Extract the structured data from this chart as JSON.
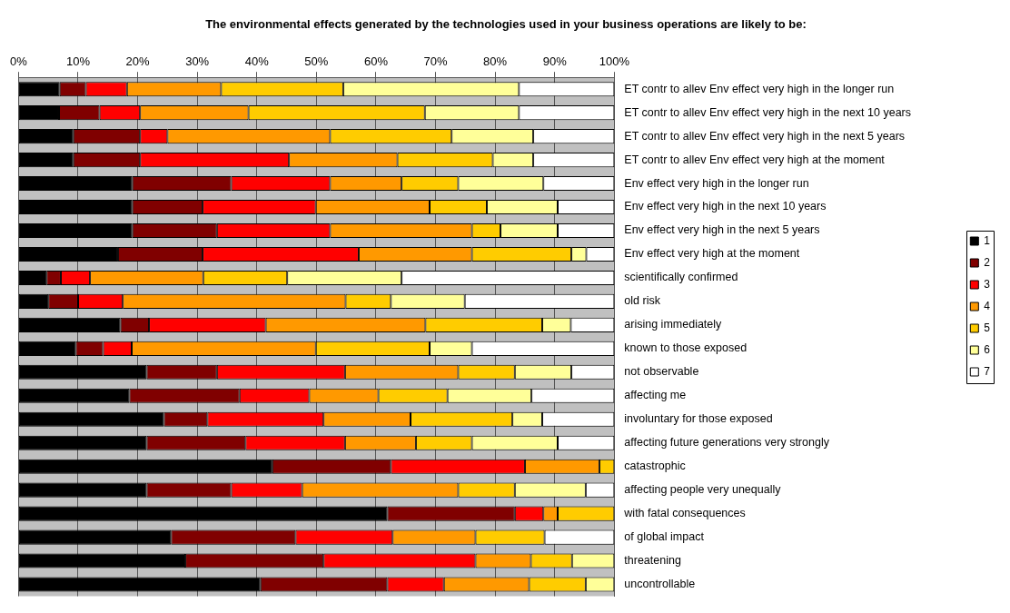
{
  "chart_data": {
    "type": "bar",
    "orientation": "horizontal",
    "stacked": true,
    "title": "The environmental effects generated by the technologies used in your business operations are likely to be:",
    "categories": [
      "ET contr to allev Env effect very high in the longer run",
      "ET contr to allev Env effect very high in the next 10 years",
      "ET contr to allev Env effect very high in the next 5 years",
      "ET contr to allev Env effect very high at the moment",
      "Env effect very high in the longer run",
      "Env effect very high in the next 10 years",
      "Env effect very high in the next 5 years",
      "Env effect very high at the moment",
      "scientifically confirmed",
      "old risk",
      "arising immediately",
      "known to those exposed",
      "not observable",
      "affecting me",
      "involuntary for those exposed",
      "affecting future generations very strongly",
      "catastrophic",
      "affecting people very unequally",
      "with fatal consequences",
      "of global impact",
      "threatening",
      "uncontrollable"
    ],
    "series": [
      {
        "name": "1",
        "color": "#000000",
        "values": [
          6.9,
          6.8,
          9.2,
          9.2,
          19.1,
          19.1,
          19.1,
          16.7,
          4.7,
          5.0,
          17.1,
          9.6,
          21.5,
          18.6,
          24.4,
          21.5,
          42.6,
          21.5,
          61.9,
          25.6,
          28.0,
          40.6
        ]
      },
      {
        "name": "2",
        "color": "#800000",
        "values": [
          4.4,
          6.8,
          11.2,
          11.2,
          16.6,
          11.8,
          14.2,
          14.2,
          2.4,
          5.0,
          4.8,
          4.6,
          11.8,
          18.5,
          7.3,
          16.6,
          19.9,
          14.2,
          21.4,
          20.9,
          23.2,
          21.3
        ]
      },
      {
        "name": "3",
        "color": "#ff0000",
        "values": [
          6.9,
          6.8,
          4.6,
          25.0,
          16.6,
          19.0,
          19.0,
          26.2,
          4.9,
          7.5,
          19.6,
          4.8,
          21.5,
          11.7,
          19.5,
          16.7,
          22.5,
          11.9,
          4.8,
          16.3,
          25.5,
          9.5
        ]
      },
      {
        "name": "4",
        "color": "#ff9900",
        "values": [
          15.8,
          18.2,
          27.3,
          18.2,
          12.0,
          19.1,
          23.8,
          19.0,
          19.0,
          37.4,
          26.8,
          30.9,
          19.0,
          11.6,
          14.6,
          11.9,
          12.5,
          26.2,
          2.4,
          13.9,
          9.3,
          14.3
        ]
      },
      {
        "name": "5",
        "color": "#ffcc00",
        "values": [
          20.5,
          29.6,
          20.4,
          16.0,
          9.5,
          9.6,
          4.8,
          16.7,
          14.1,
          7.6,
          19.6,
          19.1,
          9.5,
          11.6,
          17.1,
          9.4,
          2.5,
          9.5,
          9.5,
          11.6,
          6.9,
          9.5
        ]
      },
      {
        "name": "6",
        "color": "#ffff99",
        "values": [
          29.5,
          15.8,
          13.7,
          6.8,
          14.3,
          11.9,
          9.6,
          2.5,
          19.2,
          12.4,
          4.8,
          7.1,
          9.5,
          14.1,
          5.0,
          14.4,
          0,
          11.9,
          0,
          0,
          7.1,
          4.8
        ]
      },
      {
        "name": "7",
        "color": "#ffffff",
        "values": [
          16.0,
          16.0,
          13.6,
          13.6,
          11.9,
          9.5,
          9.5,
          4.7,
          35.7,
          25.1,
          7.3,
          23.9,
          7.2,
          13.9,
          12.1,
          9.5,
          0,
          4.8,
          0,
          11.7,
          0,
          0
        ]
      }
    ],
    "xlim": [
      0,
      100
    ],
    "xticks": [
      {
        "value": 0,
        "label": "0%"
      },
      {
        "value": 10,
        "label": "10%"
      },
      {
        "value": 20,
        "label": "20%"
      },
      {
        "value": 30,
        "label": "30%"
      },
      {
        "value": 40,
        "label": "40%"
      },
      {
        "value": 50,
        "label": "50%"
      },
      {
        "value": 60,
        "label": "60%"
      },
      {
        "value": 70,
        "label": "70%"
      },
      {
        "value": 80,
        "label": "80%"
      },
      {
        "value": 90,
        "label": "90%"
      },
      {
        "value": 100,
        "label": "100%"
      }
    ],
    "grid": "x",
    "legend": "right"
  }
}
